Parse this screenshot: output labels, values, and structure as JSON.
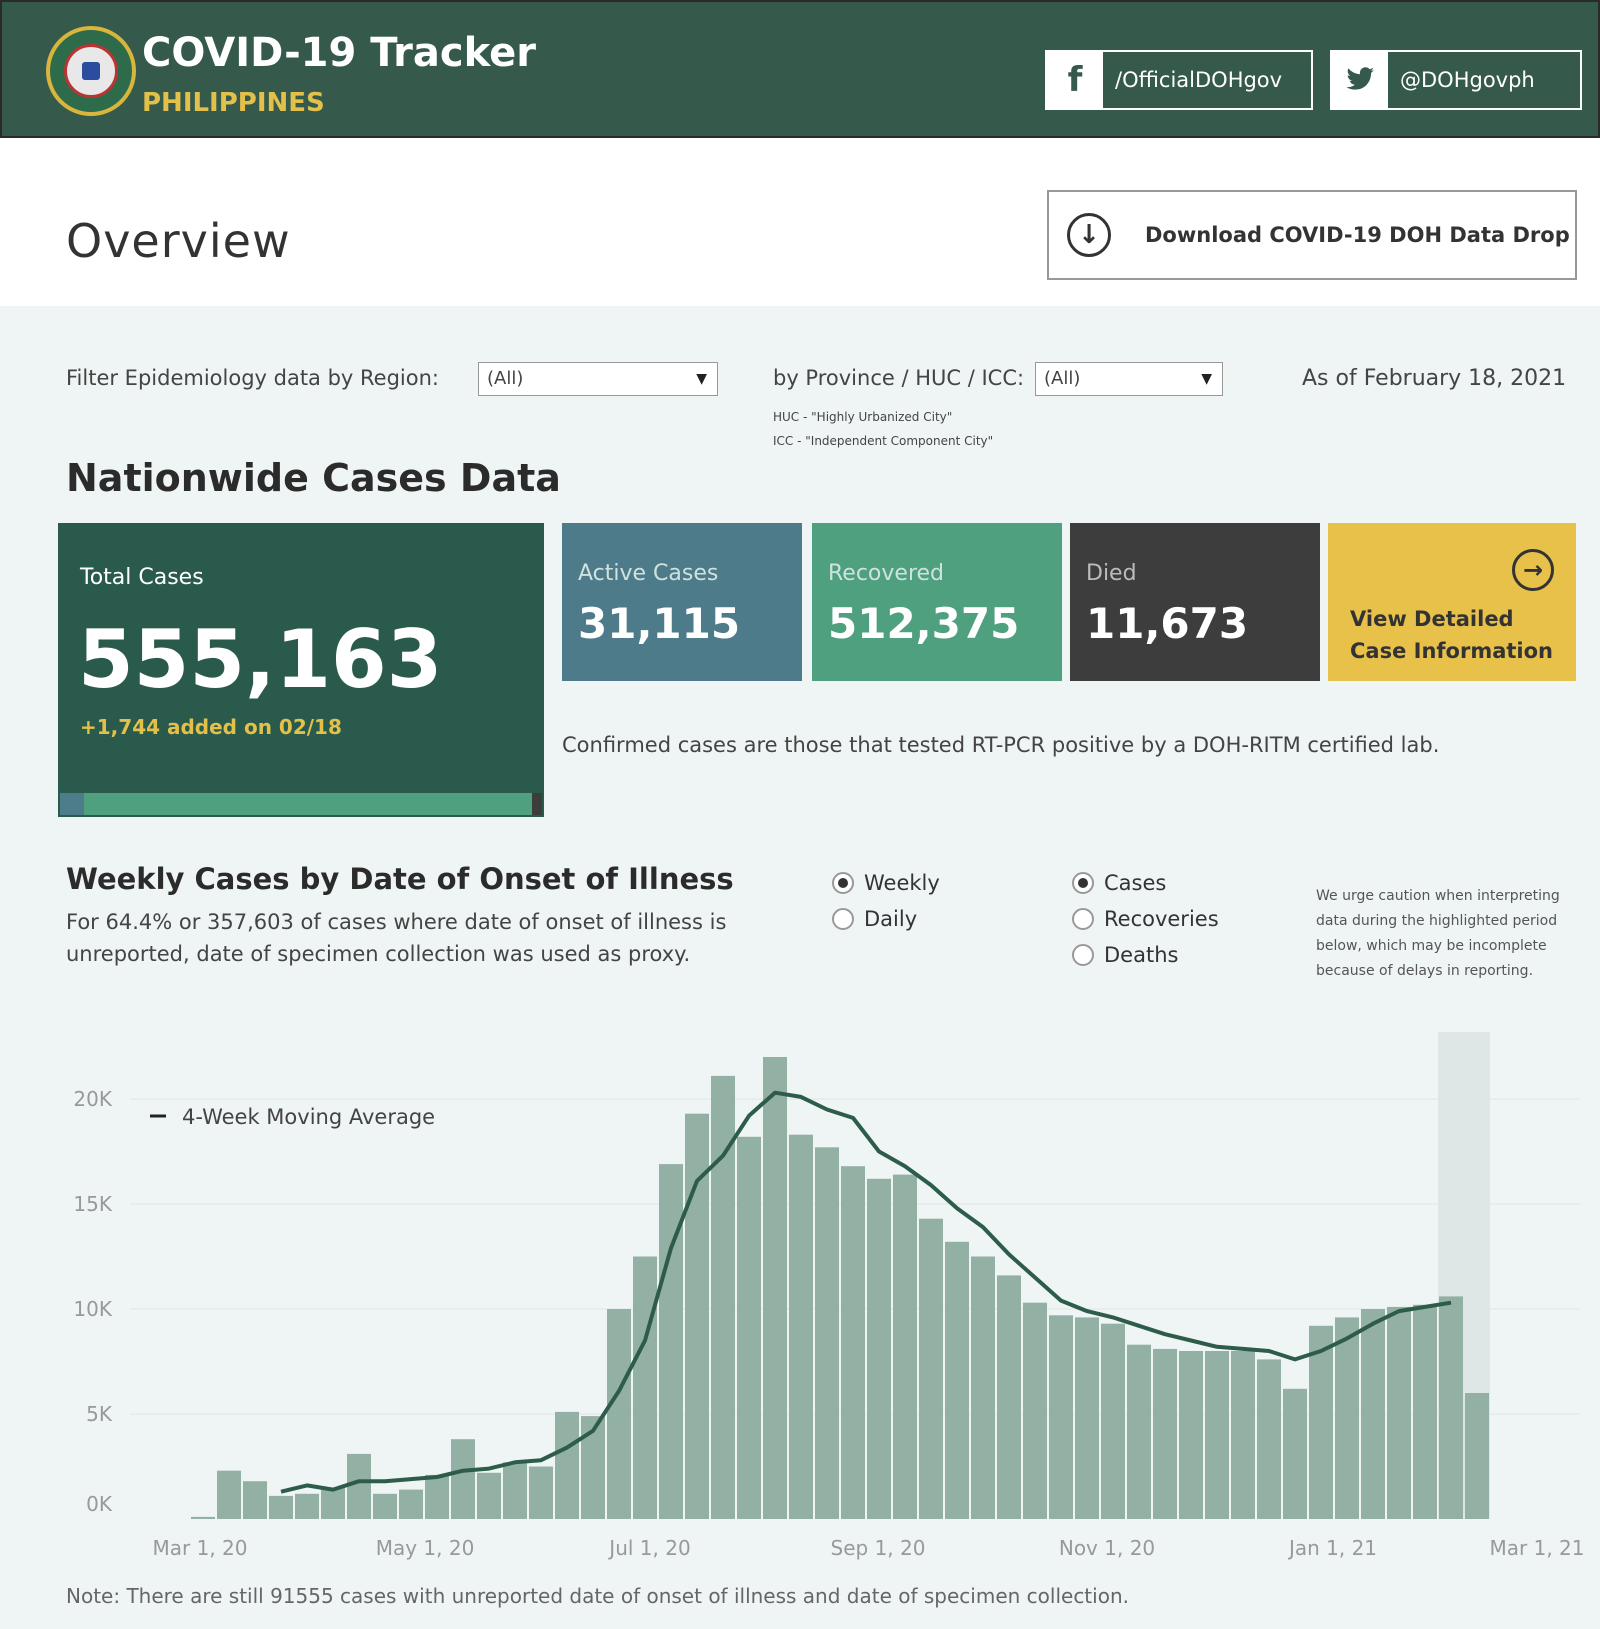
{
  "header": {
    "title": "COVID-19 Tracker",
    "subtitle": "PHILIPPINES",
    "facebook": "/OfficialDOHgov",
    "twitter": "@DOHgovph",
    "facebook_icon": "f"
  },
  "overview": {
    "title": "Overview",
    "download_label": "Download COVID-19 DOH Data Drop"
  },
  "filters": {
    "region_label": "Filter Epidemiology data by Region:",
    "region_value": "(All)",
    "province_label": "by Province / HUC / ICC:",
    "province_value": "(All)",
    "huc_note": "HUC - \"Highly Urbanized City\"",
    "icc_note": "ICC - \"Independent Component City\"",
    "as_of": "As of February 18, 2021"
  },
  "nationwide": {
    "title": "Nationwide Cases Data",
    "total_label": "Total Cases",
    "total_value": "555,163",
    "added": "+1,744 added on 02/18",
    "active_label": "Active Cases",
    "active_value": "31,115",
    "recovered_label": "Recovered",
    "recovered_value": "512,375",
    "died_label": "Died",
    "died_value": "11,673",
    "detail_label": "View Detailed Case Information",
    "confirmed_note": "Confirmed cases are those that tested RT-PCR positive by a DOH-RITM certified lab."
  },
  "weekly": {
    "title": "Weekly Cases by Date of Onset of Illness",
    "description": "For 64.4% or 357,603 of cases where date of onset of illness is unreported, date of specimen collection was used as proxy.",
    "period_options": [
      "Weekly",
      "Daily"
    ],
    "period_selected": "Weekly",
    "metric_options": [
      "Cases",
      "Recoveries",
      "Deaths"
    ],
    "metric_selected": "Cases",
    "caution": "We urge caution when interpreting data during the highlighted period below, which may be incomplete because of delays in reporting.",
    "footnote": "Note: There are still 91555 cases with unreported date of onset of illness and date of specimen collection."
  },
  "colors": {
    "header_bg": "#355a4b",
    "accent_yellow": "#e3c04a",
    "total_card": "#2a5a4c",
    "active_card": "#4e7b8a",
    "recovered_card": "#4ea07f",
    "died_card": "#3d3d3d",
    "detail_card": "#e8c14a",
    "bar": "#93b0a5",
    "line": "#2e5c4b",
    "highlight": "#dfe6e6"
  },
  "chart_data": {
    "type": "bar",
    "x_labels": [
      "Mar 1, 20",
      "May 1, 20",
      "Jul 1, 20",
      "Sep 1, 20",
      "Nov 1, 20",
      "Jan 1, 21",
      "Mar 1, 21"
    ],
    "y_ticks": [
      "0K",
      "5K",
      "10K",
      "15K",
      "20K"
    ],
    "ylim": [
      0,
      22000
    ],
    "legend": "4-Week Moving Average",
    "highlight_weeks": 2,
    "values": [
      100,
      2300,
      1800,
      1100,
      1200,
      1500,
      3100,
      1200,
      1400,
      2100,
      3800,
      2200,
      2700,
      2500,
      5100,
      4900,
      10000,
      12500,
      16900,
      19300,
      21100,
      18200,
      22000,
      18300,
      17700,
      16800,
      16200,
      16400,
      14300,
      13200,
      12500,
      11600,
      10300,
      9700,
      9600,
      9300,
      8300,
      8100,
      8000,
      8000,
      8000,
      7600,
      6200,
      9200,
      9600,
      10000,
      10100,
      10200,
      10600,
      6000
    ],
    "moving_average": [
      null,
      null,
      null,
      1300,
      1600,
      1400,
      1800,
      1800,
      1900,
      2000,
      2300,
      2400,
      2700,
      2800,
      3400,
      4200,
      6100,
      8500,
      12900,
      16100,
      17300,
      19200,
      20300,
      20100,
      19500,
      19100,
      17500,
      16800,
      15900,
      14800,
      13900,
      12600,
      11500,
      10400,
      9900,
      9600,
      9200,
      8800,
      8500,
      8200,
      8100,
      8000,
      7600,
      8000,
      8600,
      9300,
      9900,
      10100,
      10300,
      null
    ]
  }
}
